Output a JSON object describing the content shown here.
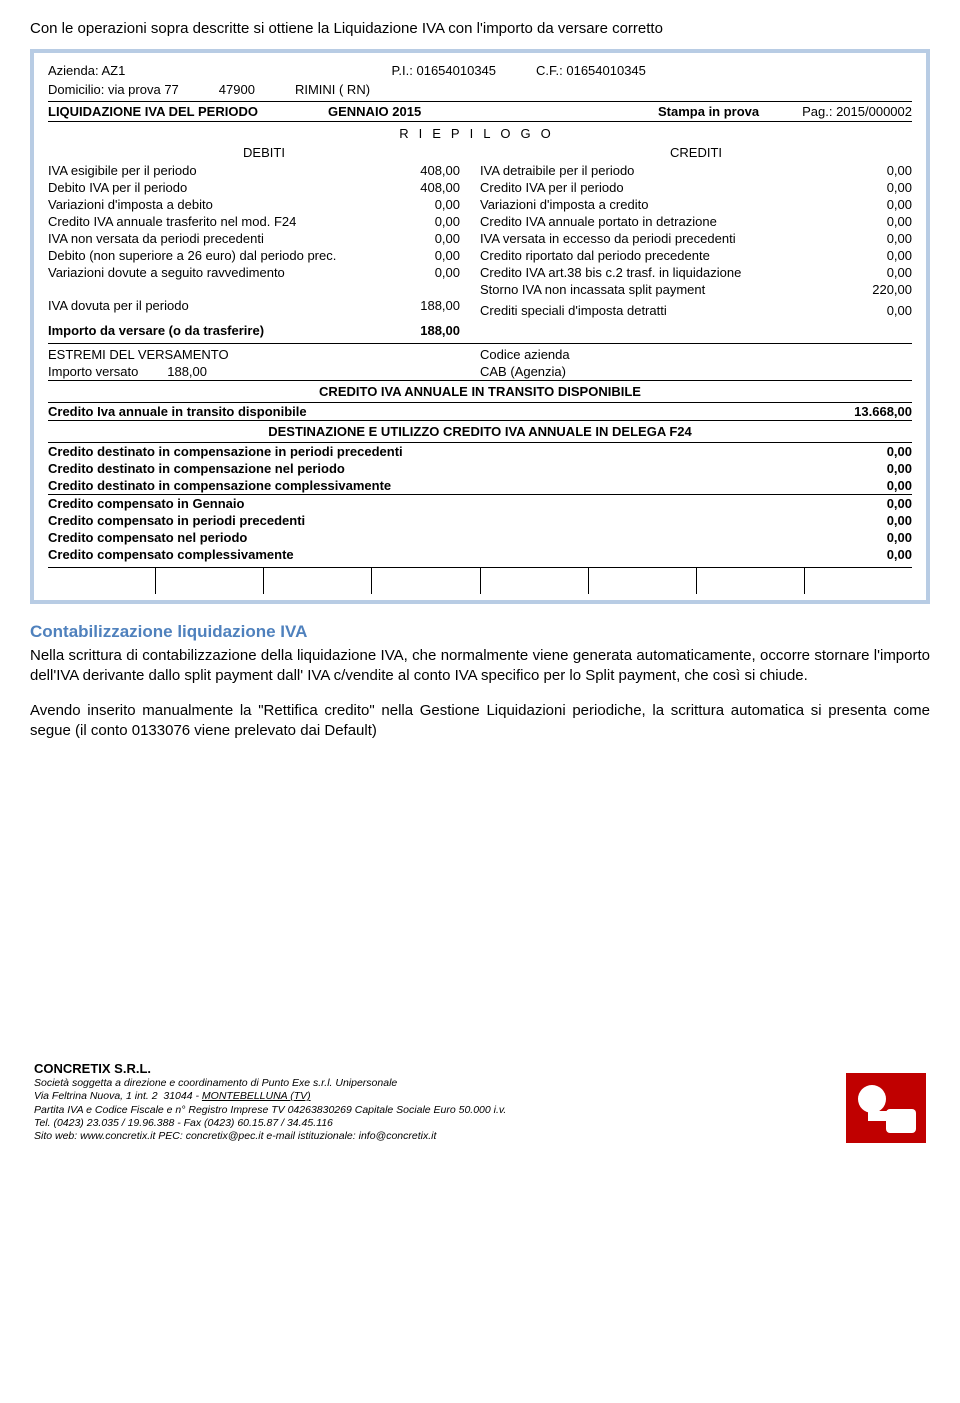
{
  "intro": "Con le operazioni sopra descritte si ottiene la Liquidazione IVA con l'importo da versare corretto",
  "report": {
    "azienda_lbl": "Azienda: AZ1",
    "pi_lbl": "P.I.: 01654010345",
    "cf_lbl": "C.F.: 01654010345",
    "dom_lbl": "Domicilio: via prova 77",
    "cap": "47900",
    "city": "RIMINI ( RN)",
    "liq_title": "LIQUIDAZIONE IVA DEL PERIODO",
    "periodo": "GENNAIO 2015",
    "stampa_lbl": "Stampa in prova",
    "pag": "Pag.: 2015/000002",
    "riepilogo": "RIEPILOGO",
    "debiti_hdr": "DEBITI",
    "crediti_hdr": "CREDITI",
    "debiti": [
      {
        "lbl": "IVA esigibile per il periodo",
        "val": "408,00"
      },
      {
        "lbl": "Debito IVA per il periodo",
        "val": "408,00"
      },
      {
        "lbl": "Variazioni d'imposta a debito",
        "val": "0,00"
      },
      {
        "lbl": "Credito IVA annuale trasferito nel mod. F24",
        "val": "0,00"
      },
      {
        "lbl": "IVA non versata da periodi precedenti",
        "val": "0,00"
      },
      {
        "lbl": "Debito (non superiore a 26 euro) dal periodo prec.",
        "val": "0,00"
      },
      {
        "lbl": "Variazioni dovute a seguito ravvedimento",
        "val": "0,00"
      }
    ],
    "crediti": [
      {
        "lbl": "IVA detraibile per il periodo",
        "val": "0,00"
      },
      {
        "lbl": "Credito IVA per il periodo",
        "val": "0,00"
      },
      {
        "lbl": "Variazioni d'imposta a credito",
        "val": "0,00"
      },
      {
        "lbl": "Credito IVA annuale portato in detrazione",
        "val": "0,00"
      },
      {
        "lbl": "IVA versata in eccesso da periodi precedenti",
        "val": "0,00"
      },
      {
        "lbl": "Credito riportato dal periodo precedente",
        "val": "0,00"
      },
      {
        "lbl": "Credito IVA art.38 bis c.2 trasf. in liquidazione",
        "val": "0,00"
      },
      {
        "lbl": "Storno IVA non incassata split payment",
        "val": "220,00"
      }
    ],
    "iva_dovuta_lbl": "IVA dovuta per il periodo",
    "iva_dovuta_val": "188,00",
    "crediti_spec_lbl": "Crediti speciali d'imposta detratti",
    "crediti_spec_val": "0,00",
    "importo_versare_lbl": "Importo da versare (o da trasferire)",
    "importo_versare_val": "188,00",
    "estremi_lbl": "ESTREMI DEL VERSAMENTO",
    "codice_az_lbl": "Codice azienda",
    "importo_versato_lbl": "Importo versato",
    "importo_versato_val": "188,00",
    "cab_lbl": "CAB (Agenzia)",
    "sec1_title": "CREDITO IVA ANNUALE IN TRANSITO DISPONIBILE",
    "sec1_row_lbl": "Credito Iva annuale in transito disponibile",
    "sec1_row_val": "13.668,00",
    "sec2_title": "DESTINAZIONE E UTILIZZO CREDITO IVA ANNUALE IN DELEGA F24",
    "sec2_rows": [
      {
        "lbl": "Credito destinato in compensazione in periodi precedenti",
        "val": "0,00"
      },
      {
        "lbl": "Credito destinato in compensazione nel periodo",
        "val": "0,00"
      },
      {
        "lbl": "Credito destinato in compensazione complessivamente",
        "val": "0,00"
      }
    ],
    "sec3_rows": [
      {
        "lbl": "Credito compensato in Gennaio",
        "val": "0,00"
      },
      {
        "lbl": "Credito compensato in periodi precedenti",
        "val": "0,00"
      },
      {
        "lbl": "Credito compensato nel periodo",
        "val": "0,00"
      },
      {
        "lbl": "Credito compensato complessivamente",
        "val": "0,00"
      }
    ]
  },
  "contab": {
    "heading": "Contabilizzazione liquidazione IVA",
    "p1": "Nella scrittura di contabilizzazione della liquidazione IVA, che normalmente viene generata automaticamente, occorre stornare l'importo dell'IVA derivante dallo split payment dall' IVA c/vendite al conto IVA specifico per lo Split payment, che così si chiude.",
    "p2": "Avendo inserito manualmente la \"Rettifica credito\" nella Gestione Liquidazioni periodiche, la scrittura automatica si presenta come segue (il conto 0133076 viene prelevato dai Default)"
  },
  "footer": {
    "company": "CONCRETIX S.R.L.",
    "l1": "Società soggetta a direzione e coordinamento di Punto Exe s.r.l. Unipersonale",
    "l2": "Via Feltrina Nuova, 1 int. 2  31044 - MONTEBELLUNA (TV)",
    "l3": "Partita IVA e Codice Fiscale e n° Registro Imprese TV 04263830269     Capitale Sociale Euro 50.000 i.v.",
    "l4": "Tel. (0423) 23.035 / 19.96.388   -   Fax (0423) 60.15.87 / 34.45.116",
    "l5": "Sito web: www.concretix.it     PEC: concretix@pec.it     e-mail istituzionale: info@concretix.it",
    "logo_bg": "#c00000",
    "logo_fg": "#ffffff"
  }
}
